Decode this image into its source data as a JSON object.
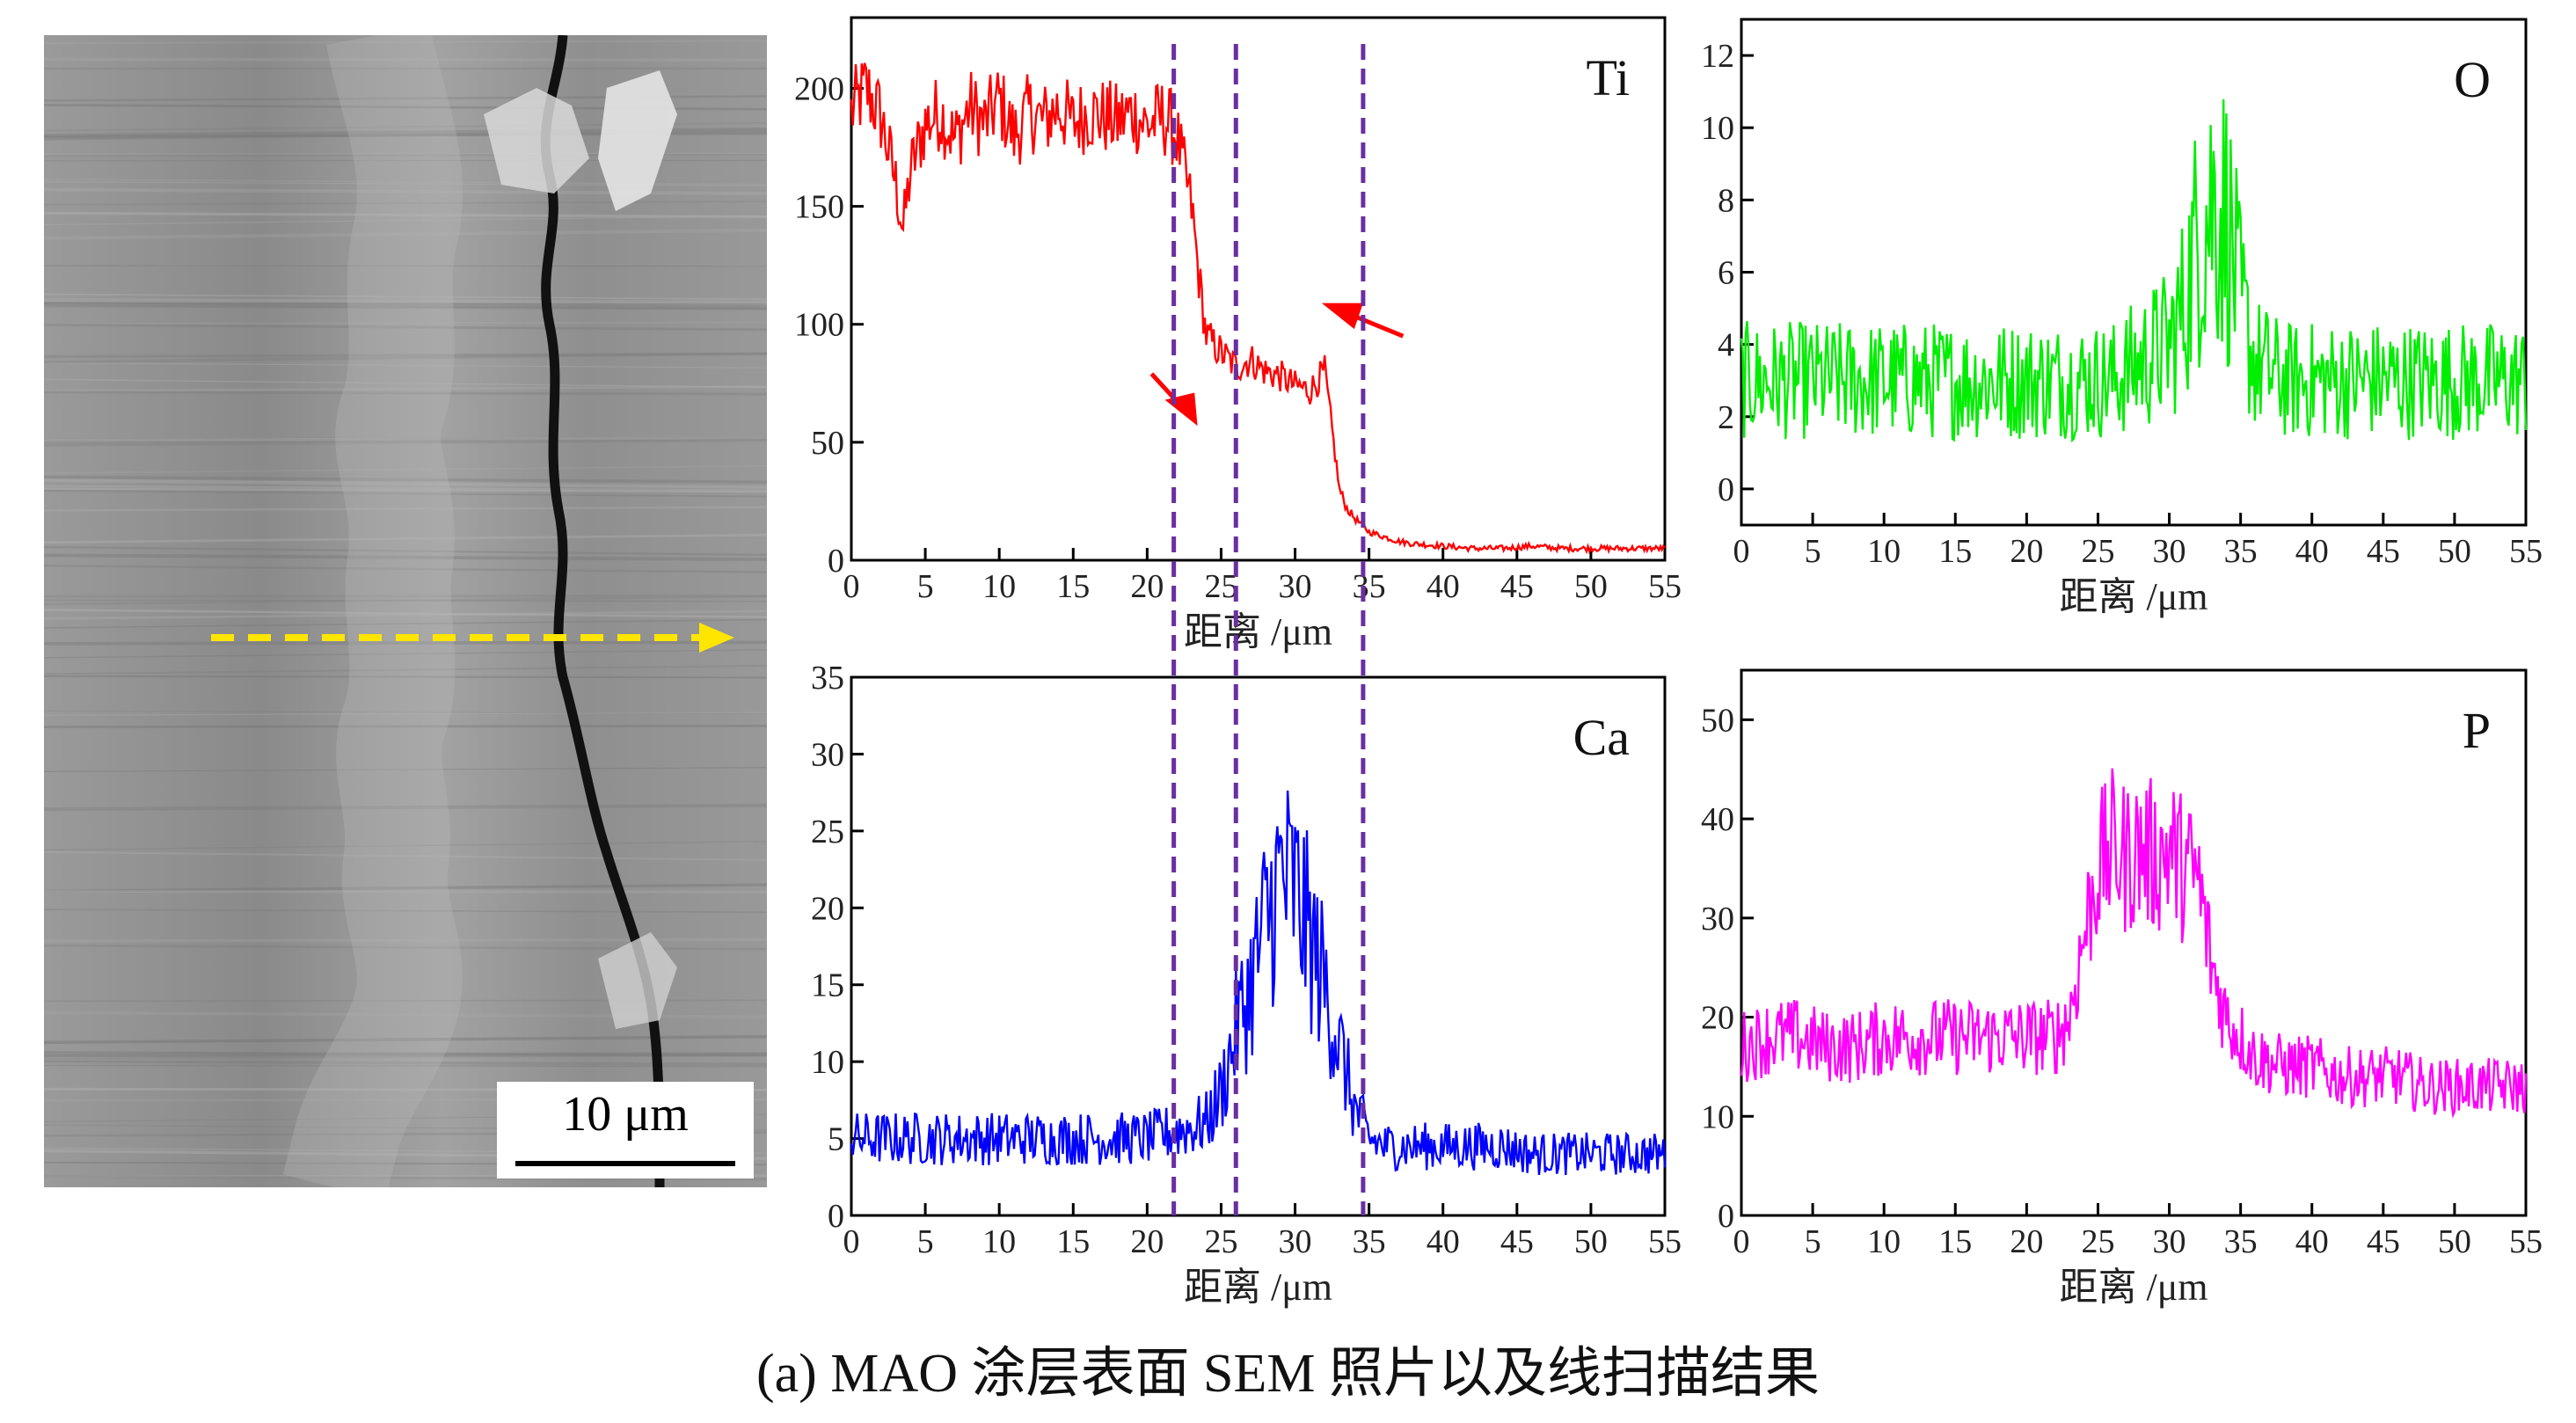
{
  "figure": {
    "caption": "(a) MAO 涂层表面 SEM 照片以及线扫描结果",
    "scale_bar_label": "10 μm",
    "scan_arrow_color": "#ffe600"
  },
  "chart_data": [
    {
      "type": "line",
      "panel": "Ti",
      "title": "Ti",
      "xlabel": "距离 /μm",
      "ylabel": "",
      "xlim": [
        0,
        55
      ],
      "ylim": [
        0,
        230
      ],
      "xticks": [
        0,
        5,
        10,
        15,
        20,
        25,
        30,
        35,
        40,
        45,
        50,
        55
      ],
      "yticks": [
        0,
        50,
        100,
        150,
        200
      ],
      "grid": false,
      "color": "#ff0000",
      "series": [
        {
          "x": [
            0,
            1,
            2,
            3,
            3.5,
            4,
            5,
            6,
            7,
            8,
            9,
            10,
            11,
            12,
            13,
            14,
            15,
            16,
            17,
            18,
            19,
            20,
            21,
            21.5,
            22,
            22.5,
            23,
            23.5,
            24,
            25,
            26,
            27,
            28,
            29,
            30,
            31,
            32,
            32.5,
            33,
            33.5,
            34,
            35,
            36,
            37,
            38,
            40,
            42,
            44,
            46,
            48,
            50,
            52,
            54,
            55
          ],
          "values": [
            190,
            200,
            188,
            160,
            140,
            165,
            185,
            190,
            178,
            192,
            185,
            195,
            180,
            190,
            186,
            192,
            185,
            190,
            188,
            186,
            190,
            184,
            188,
            185,
            180,
            165,
            150,
            120,
            95,
            88,
            82,
            85,
            80,
            78,
            74,
            72,
            80,
            55,
            30,
            22,
            18,
            12,
            10,
            8,
            7,
            6,
            5,
            5,
            6,
            5,
            5,
            5,
            5,
            5
          ]
        }
      ],
      "annotations": [
        {
          "kind": "arrow",
          "pointing": "down-right",
          "color": "#ff0000"
        },
        {
          "kind": "arrow",
          "pointing": "up-left",
          "color": "#ff0000"
        }
      ]
    },
    {
      "type": "line",
      "panel": "O",
      "title": "O",
      "xlabel": "距离 /μm",
      "ylabel": "",
      "xlim": [
        0,
        55
      ],
      "ylim": [
        -1,
        13
      ],
      "xticks": [
        0,
        5,
        10,
        15,
        20,
        25,
        30,
        35,
        40,
        45,
        50,
        55
      ],
      "yticks": [
        0,
        2,
        4,
        6,
        8,
        10,
        12
      ],
      "grid": false,
      "color": "#00ee00",
      "series": [
        {
          "x": [
            0,
            2,
            4,
            6,
            8,
            10,
            12,
            14,
            16,
            18,
            20,
            22,
            24,
            26,
            28,
            30,
            31,
            32,
            33,
            34,
            35,
            36,
            38,
            40,
            42,
            44,
            46,
            48,
            50,
            52,
            54,
            55
          ],
          "values": [
            3,
            3,
            3,
            3,
            3,
            3,
            3,
            3,
            3,
            3,
            3,
            3,
            3,
            3,
            3.5,
            4,
            5,
            7,
            8,
            7.5,
            5,
            3.5,
            3,
            3,
            3,
            3,
            3,
            3,
            3,
            3,
            3,
            3
          ]
        }
      ]
    },
    {
      "type": "line",
      "panel": "Ca",
      "title": "Ca",
      "xlabel": "距离 /μm",
      "ylabel": "",
      "xlim": [
        0,
        55
      ],
      "ylim": [
        0,
        35
      ],
      "xticks": [
        0,
        5,
        10,
        15,
        20,
        25,
        30,
        35,
        40,
        45,
        50,
        55
      ],
      "yticks": [
        0,
        5,
        10,
        15,
        20,
        25,
        30,
        35
      ],
      "grid": false,
      "color": "#0000ff",
      "series": [
        {
          "x": [
            0,
            2,
            4,
            6,
            8,
            10,
            12,
            14,
            16,
            18,
            20,
            22,
            24,
            25,
            26,
            27,
            28,
            29,
            30,
            31,
            32,
            33,
            34,
            35,
            36,
            38,
            40,
            42,
            44,
            46,
            48,
            50,
            52,
            54,
            55
          ],
          "values": [
            5,
            5,
            5,
            5,
            5,
            5,
            5,
            5,
            5,
            5,
            5,
            5.5,
            6,
            8,
            12,
            15,
            19,
            22,
            21,
            18,
            15,
            11,
            7,
            5,
            4.5,
            4.5,
            4.5,
            4.5,
            4.5,
            4,
            4,
            4,
            4,
            4,
            4
          ]
        }
      ]
    },
    {
      "type": "line",
      "panel": "P",
      "title": "P",
      "xlabel": "距离 /μm",
      "ylabel": "",
      "xlim": [
        0,
        55
      ],
      "ylim": [
        0,
        55
      ],
      "xticks": [
        0,
        5,
        10,
        15,
        20,
        25,
        30,
        35,
        40,
        45,
        50,
        55
      ],
      "yticks": [
        0,
        10,
        20,
        30,
        40,
        50
      ],
      "grid": false,
      "color": "#ff00ff",
      "series": [
        {
          "x": [
            0,
            2,
            4,
            6,
            8,
            10,
            12,
            14,
            16,
            18,
            20,
            22,
            23,
            24,
            25,
            26,
            27,
            28,
            29,
            30,
            31,
            32,
            33,
            34,
            36,
            38,
            40,
            42,
            44,
            46,
            48,
            50,
            52,
            54,
            55
          ],
          "values": [
            17,
            18,
            18,
            17,
            17,
            18,
            18,
            18,
            18,
            18,
            18,
            18,
            20,
            28,
            35,
            37,
            36,
            37,
            36,
            37,
            35,
            34,
            25,
            20,
            16,
            15,
            15,
            14,
            14,
            14,
            13,
            13,
            13,
            13,
            13
          ]
        }
      ]
    }
  ],
  "guides": {
    "color": "#6a2fa0",
    "x_values": [
      21.8,
      26,
      34.6
    ]
  }
}
